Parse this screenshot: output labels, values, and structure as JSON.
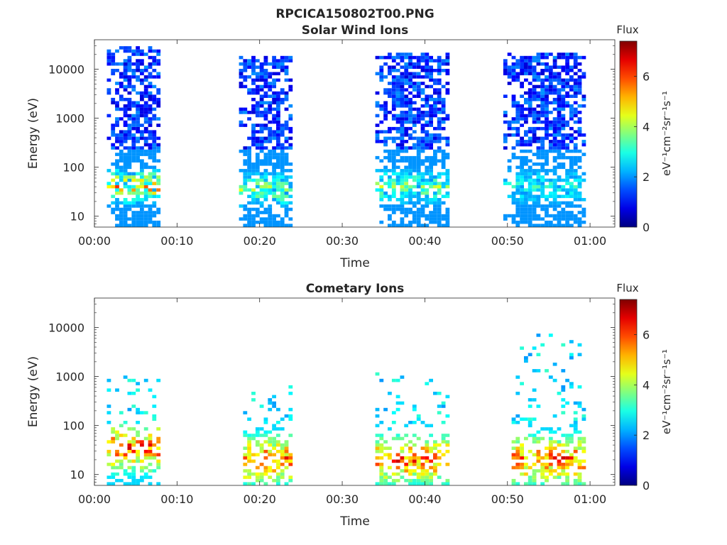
{
  "figure": {
    "title": "RPCICA150802T00.PNG"
  },
  "chart_data": [
    {
      "type": "heatmap",
      "title": "Solar Wind Ions",
      "xlabel": "Time",
      "ylabel": "Energy (eV)",
      "y_scale": "log",
      "x_ticks": [
        "00:00",
        "00:10",
        "00:20",
        "00:30",
        "00:40",
        "00:50",
        "01:00"
      ],
      "y_ticks": [
        "10",
        "100",
        "1000",
        "10000"
      ],
      "xlim_minutes": [
        0,
        63
      ],
      "ylim_eV": [
        6,
        40000
      ],
      "colorbar": {
        "title": "Flux",
        "label": "eV⁻¹cm⁻²sr⁻¹s⁻¹",
        "ticks": [
          "0",
          "2",
          "4",
          "6"
        ],
        "range": [
          0,
          7.4
        ],
        "colormap": "jet"
      },
      "bursts": [
        {
          "t_start_min": 1.5,
          "t_end_min": 8.0,
          "e_min_eV": 6,
          "e_max_eV": 30000,
          "peak_flux": 6.5,
          "peak_energy_eV": 40
        },
        {
          "t_start_min": 17.5,
          "t_end_min": 24.0,
          "e_min_eV": 6,
          "e_max_eV": 20000,
          "peak_flux": 4.8,
          "peak_energy_eV": 35
        },
        {
          "t_start_min": 34.0,
          "t_end_min": 43.0,
          "e_min_eV": 6,
          "e_max_eV": 22000,
          "peak_flux": 4.5,
          "peak_energy_eV": 40
        },
        {
          "t_start_min": 49.5,
          "t_end_min": 59.5,
          "e_min_eV": 6,
          "e_max_eV": 22000,
          "peak_flux": 3.5,
          "peak_energy_eV": 40
        }
      ]
    },
    {
      "type": "heatmap",
      "title": "Cometary Ions",
      "xlabel": "Time",
      "ylabel": "Energy (eV)",
      "y_scale": "log",
      "x_ticks": [
        "00:00",
        "00:10",
        "00:20",
        "00:30",
        "00:40",
        "00:50",
        "01:00"
      ],
      "y_ticks": [
        "10",
        "100",
        "1000",
        "10000"
      ],
      "xlim_minutes": [
        0,
        63
      ],
      "ylim_eV": [
        6,
        40000
      ],
      "colorbar": {
        "title": "Flux",
        "label": "eV⁻¹cm⁻²sr⁻¹s⁻¹",
        "ticks": [
          "0",
          "2",
          "4",
          "6"
        ],
        "range": [
          0,
          7.4
        ],
        "colormap": "jet"
      },
      "bursts": [
        {
          "t_start_min": 1.5,
          "t_end_min": 8.0,
          "e_min_eV": 6,
          "e_max_eV": 1000,
          "peak_flux": 7.2,
          "peak_energy_eV": 35
        },
        {
          "t_start_min": 18.0,
          "t_end_min": 24.0,
          "e_min_eV": 6,
          "e_max_eV": 700,
          "peak_flux": 7.2,
          "peak_energy_eV": 20
        },
        {
          "t_start_min": 34.0,
          "t_end_min": 43.0,
          "e_min_eV": 6,
          "e_max_eV": 1200,
          "peak_flux": 7.2,
          "peak_energy_eV": 20
        },
        {
          "t_start_min": 50.5,
          "t_end_min": 59.5,
          "e_min_eV": 6,
          "e_max_eV": 8000,
          "peak_flux": 7.2,
          "peak_energy_eV": 20
        }
      ]
    }
  ]
}
